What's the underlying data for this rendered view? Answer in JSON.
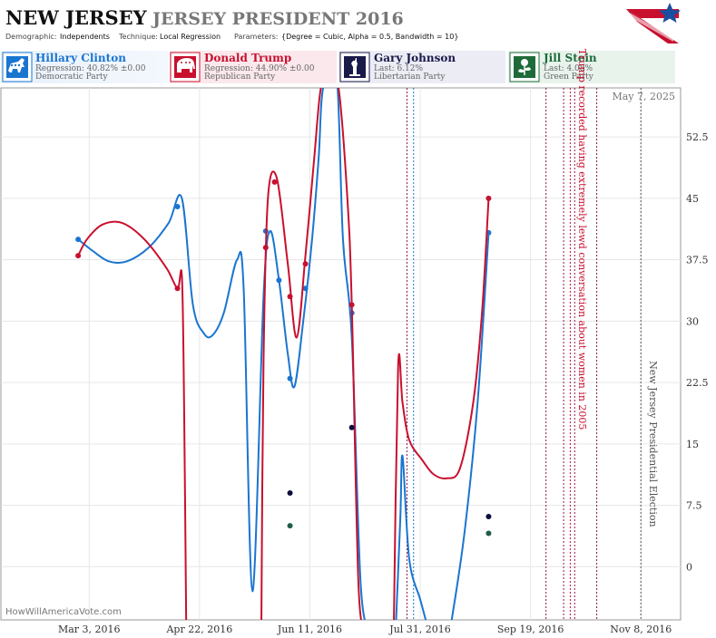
{
  "header": {
    "state": "NEW JERSEY",
    "title": "JERSEY PRESIDENT 2016",
    "demographic_label": "Demographic:",
    "demographic_value": "Independents",
    "technique_label": "Technique:",
    "technique_value": "Local Regression",
    "parameters_label": "Parameters:",
    "parameters_value": "{Degree = Cubic, Alpha = 0.5, Bandwidth = 10}"
  },
  "candidates": [
    {
      "name": "Hillary Clinton",
      "stat": "Regression: 40.82% ±0.00",
      "party": "Democratic Party",
      "color": "#1a75d1",
      "bg": "#e8f1fb",
      "icon": "donkey-icon"
    },
    {
      "name": "Donald Trump",
      "stat": "Regression: 44.90% ±0.00",
      "party": "Republican Party",
      "color": "#c8102e",
      "bg": "#fbe8ec",
      "icon": "elephant-icon"
    },
    {
      "name": "Gary Johnson",
      "stat": "Last: 6.12%",
      "party": "Libertarian Party",
      "color": "#1a1a4a",
      "bg": "#ececf5",
      "icon": "liberty-statue-icon"
    },
    {
      "name": "Jill Stein",
      "stat": "Last: 4.08%",
      "party": "Green Party",
      "color": "#1e6b3a",
      "bg": "#e8f3ec",
      "icon": "rose-icon"
    }
  ],
  "chart_data": {
    "type": "line",
    "date_label": "May 7, 2025",
    "watermark": "HowWillAmericaVote.com",
    "x_ticks": [
      "2016-03-03",
      "2016-04-22",
      "2016-06-11",
      "2016-07-31",
      "2016-09-19",
      "2016-11-08"
    ],
    "x_tick_labels": [
      "Mar 3, 2016",
      "Apr 22, 2016",
      "Jun 11, 2016",
      "Jul 31, 2016",
      "Sep 19, 2016",
      "Nov 8, 2016"
    ],
    "xlim": [
      "2016-01-23",
      "2016-11-26"
    ],
    "y_ticks": [
      0,
      7.5,
      15,
      22.5,
      30,
      37.5,
      45,
      52.5
    ],
    "y_tick_labels": [
      "0",
      "7.5",
      "15",
      "22.5",
      "30",
      "37.5",
      "45",
      "52.5"
    ],
    "ylim": [
      -6.5,
      58.5
    ],
    "grid": true,
    "series": [
      {
        "name": "Hillary Clinton",
        "color": "#1a75d1",
        "points": [
          [
            "2016-02-27",
            40
          ],
          [
            "2016-04-12",
            44
          ],
          [
            "2016-05-22",
            41
          ],
          [
            "2016-05-28",
            35
          ],
          [
            "2016-06-02",
            23
          ],
          [
            "2016-06-09",
            34
          ],
          [
            "2016-06-30",
            31
          ],
          [
            "2016-08-31",
            40.8
          ]
        ],
        "line": [
          [
            "2016-02-27",
            40
          ],
          [
            "2016-03-05",
            38.5
          ],
          [
            "2016-03-12",
            37.3
          ],
          [
            "2016-03-20",
            37.3
          ],
          [
            "2016-03-30",
            39
          ],
          [
            "2016-04-08",
            42
          ],
          [
            "2016-04-14",
            45
          ],
          [
            "2016-04-19",
            32
          ],
          [
            "2016-04-24",
            28.5
          ],
          [
            "2016-04-28",
            28.3
          ],
          [
            "2016-05-03",
            31
          ],
          [
            "2016-05-09",
            37.5
          ],
          [
            "2016-05-12",
            34
          ],
          [
            "2016-05-16",
            -3
          ],
          [
            "2016-05-21",
            33
          ],
          [
            "2016-05-24",
            41
          ],
          [
            "2016-05-28",
            35
          ],
          [
            "2016-06-01",
            26
          ],
          [
            "2016-06-04",
            22
          ],
          [
            "2016-06-08",
            30
          ],
          [
            "2016-06-12",
            40
          ],
          [
            "2016-06-15",
            50
          ],
          [
            "2016-06-17",
            58.5
          ],
          [
            "2016-06-23",
            60.5
          ],
          [
            "2016-06-26",
            40
          ],
          [
            "2016-06-30",
            28
          ],
          [
            "2016-07-04",
            -2
          ],
          [
            "2016-07-08",
            -8
          ]
        ]
      },
      {
        "name": "Hillary Clinton",
        "color": "#1a75d1",
        "points": [],
        "line": [
          [
            "2016-07-20",
            -7
          ],
          [
            "2016-07-22",
            6
          ],
          [
            "2016-07-23",
            13.5
          ],
          [
            "2016-07-26",
            1
          ],
          [
            "2016-07-31",
            -4
          ],
          [
            "2016-08-03",
            -7
          ]
        ]
      },
      {
        "name": "Hillary Clinton",
        "color": "#1a75d1",
        "points": [],
        "line": [
          [
            "2016-08-14",
            -7
          ],
          [
            "2016-08-20",
            4
          ],
          [
            "2016-08-26",
            20
          ],
          [
            "2016-08-31",
            40.8
          ]
        ]
      },
      {
        "name": "Donald Trump",
        "color": "#c8102e",
        "points": [
          [
            "2016-02-27",
            38
          ],
          [
            "2016-04-12",
            34
          ],
          [
            "2016-05-22",
            39
          ],
          [
            "2016-05-26",
            47
          ],
          [
            "2016-06-02",
            33
          ],
          [
            "2016-06-09",
            37
          ],
          [
            "2016-06-30",
            32
          ],
          [
            "2016-08-31",
            45
          ]
        ],
        "line": [
          [
            "2016-02-27",
            38
          ],
          [
            "2016-03-02",
            40
          ],
          [
            "2016-03-09",
            41.8
          ],
          [
            "2016-03-18",
            42
          ],
          [
            "2016-03-28",
            40
          ],
          [
            "2016-04-07",
            36.5
          ],
          [
            "2016-04-12",
            34
          ],
          [
            "2016-04-14",
            35.5
          ],
          [
            "2016-04-15",
            20
          ],
          [
            "2016-04-16",
            -8
          ]
        ]
      },
      {
        "name": "Donald Trump",
        "color": "#c8102e",
        "points": [],
        "line": [
          [
            "2016-05-20",
            -8
          ],
          [
            "2016-05-21",
            25
          ],
          [
            "2016-05-23",
            45
          ],
          [
            "2016-05-27",
            47.5
          ],
          [
            "2016-06-01",
            37
          ],
          [
            "2016-06-05",
            28
          ],
          [
            "2016-06-09",
            38
          ],
          [
            "2016-06-13",
            50
          ],
          [
            "2016-06-16",
            58.5
          ],
          [
            "2016-06-20",
            60
          ],
          [
            "2016-06-24",
            58.5
          ],
          [
            "2016-06-28",
            45
          ],
          [
            "2016-06-30",
            32
          ],
          [
            "2016-07-03",
            -2
          ],
          [
            "2016-07-06",
            -8
          ]
        ]
      },
      {
        "name": "Donald Trump",
        "color": "#c8102e",
        "points": [],
        "line": [
          [
            "2016-07-19",
            -8
          ],
          [
            "2016-07-21",
            24.5
          ],
          [
            "2016-07-23",
            20
          ],
          [
            "2016-07-26",
            15.5
          ],
          [
            "2016-08-01",
            13
          ],
          [
            "2016-08-06",
            11.3
          ],
          [
            "2016-08-12",
            10.8
          ],
          [
            "2016-08-18",
            12
          ],
          [
            "2016-08-24",
            20
          ],
          [
            "2016-08-28",
            31
          ],
          [
            "2016-08-31",
            45
          ]
        ]
      },
      {
        "name": "Gary Johnson",
        "color": "#0d0d3d",
        "points": [
          [
            "2016-06-02",
            9
          ],
          [
            "2016-06-30",
            17
          ],
          [
            "2016-08-31",
            6.12
          ]
        ],
        "line": []
      },
      {
        "name": "Jill Stein",
        "color": "#1e5e46",
        "points": [
          [
            "2016-06-02",
            5
          ],
          [
            "2016-08-31",
            4.08
          ]
        ],
        "line": []
      }
    ],
    "event_lines": [
      {
        "date": "2016-07-25",
        "color": "#8a1a4a",
        "style": "dotted"
      },
      {
        "date": "2016-07-28",
        "color": "#1a75d1",
        "style": "dotted"
      },
      {
        "date": "2016-09-26",
        "color": "#8a1a4a",
        "style": "dotted"
      },
      {
        "date": "2016-10-04",
        "color": "#8a1a4a",
        "style": "dotted"
      },
      {
        "date": "2016-10-07",
        "color": "#c8102e",
        "style": "dotted"
      },
      {
        "date": "2016-10-09",
        "color": "#8a1a4a",
        "style": "dotted"
      },
      {
        "date": "2016-10-19",
        "color": "#8a1a4a",
        "style": "dotted"
      },
      {
        "date": "2016-11-08",
        "color": "#555555",
        "style": "dotted"
      }
    ],
    "annotations": [
      {
        "date": "2016-10-11",
        "text": "Trump recorded having extremely lewd conversation about women in 2005",
        "color": "#c8102e",
        "y": 40
      },
      {
        "date": "2016-11-12",
        "text": "New Jersey Presidential Election",
        "color": "#555555",
        "y": 15
      }
    ]
  }
}
